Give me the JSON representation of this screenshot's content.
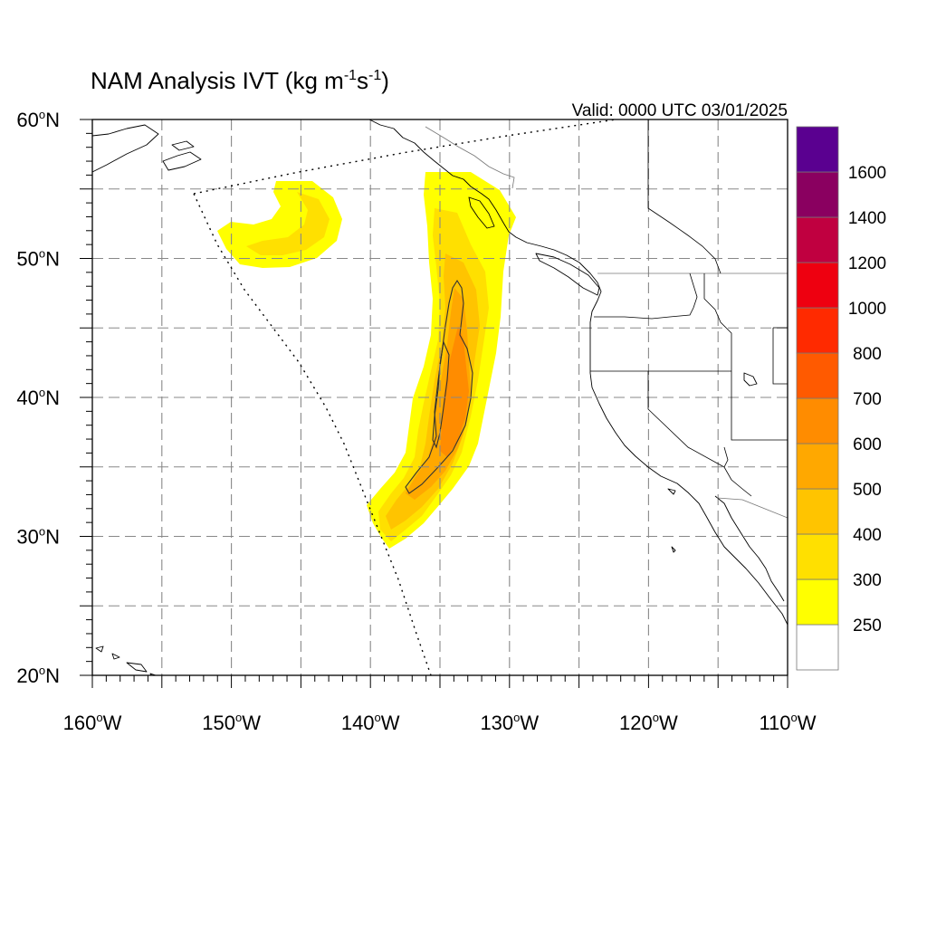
{
  "title": {
    "main": "NAM Analysis IVT (kg m",
    "sup1": "-1",
    "mid": "s",
    "sup2": "-1",
    "end": ")"
  },
  "valid_label": "Valid: 0000 UTC 03/01/2025",
  "map": {
    "lon_range": [
      -160,
      -110
    ],
    "lat_range": [
      20,
      60
    ],
    "lon_ticks": [
      {
        "value": -160,
        "label": "160",
        "deg": "o",
        "hemi": "W"
      },
      {
        "value": -150,
        "label": "150",
        "deg": "o",
        "hemi": "W"
      },
      {
        "value": -140,
        "label": "140",
        "deg": "o",
        "hemi": "W"
      },
      {
        "value": -130,
        "label": "130",
        "deg": "o",
        "hemi": "W"
      },
      {
        "value": -120,
        "label": "120",
        "deg": "o",
        "hemi": "W"
      },
      {
        "value": -110,
        "label": "110",
        "deg": "o",
        "hemi": "W"
      }
    ],
    "lat_ticks": [
      {
        "value": 60,
        "label": "60",
        "deg": "o",
        "hemi": "N"
      },
      {
        "value": 50,
        "label": "50",
        "deg": "o",
        "hemi": "N"
      },
      {
        "value": 40,
        "label": "40",
        "deg": "o",
        "hemi": "N"
      },
      {
        "value": 30,
        "label": "30",
        "deg": "o",
        "hemi": "N"
      },
      {
        "value": 20,
        "label": "20",
        "deg": "o",
        "hemi": "N"
      }
    ],
    "grid_lon": [
      -155,
      -150,
      -145,
      -140,
      -135,
      -130,
      -125,
      -120,
      -115
    ],
    "grid_lat": [
      25,
      30,
      35,
      40,
      45,
      50,
      55
    ]
  },
  "colorbar": {
    "levels": [
      "250",
      "300",
      "400",
      "500",
      "600",
      "700",
      "800",
      "1000",
      "1200",
      "1400",
      "1600"
    ],
    "colors": [
      "#ffffff",
      "#ffff00",
      "#ffe000",
      "#ffc400",
      "#ffa800",
      "#ff8c00",
      "#ff5a00",
      "#ff2a00",
      "#ee0010",
      "#c00040",
      "#8a0060",
      "#5a0090"
    ]
  },
  "ivt_colors": {
    "y1": "#ffff00",
    "y2": "#ffe000",
    "o1": "#ffc400",
    "o2": "#ffa800",
    "o3": "#ff8c00"
  }
}
